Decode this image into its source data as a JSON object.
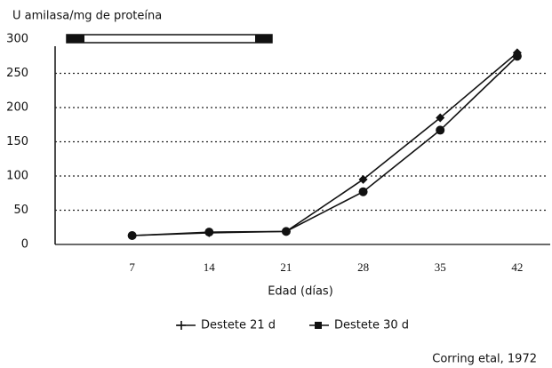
{
  "chart_data": {
    "type": "line",
    "y_label": "U amilasa/mg de proteína",
    "x_label": "Edad (días)",
    "annotation": "Corring etal, 1972",
    "x": [
      7,
      14,
      21,
      28,
      35,
      42
    ],
    "series": [
      {
        "name": "Destete 21 d",
        "color": "#111111",
        "values": [
          13,
          17,
          19,
          95,
          185,
          280
        ]
      },
      {
        "name": "Destete 30 d",
        "color": "#111111",
        "values": [
          13,
          18,
          19,
          77,
          167,
          275
        ]
      }
    ],
    "xlim": [
      0,
      45
    ],
    "xticks": [
      7,
      14,
      21,
      28,
      35,
      42
    ],
    "ylim": [
      0,
      300
    ],
    "yticks": [
      0,
      50,
      100,
      150,
      200,
      250,
      300
    ],
    "grid": true
  }
}
